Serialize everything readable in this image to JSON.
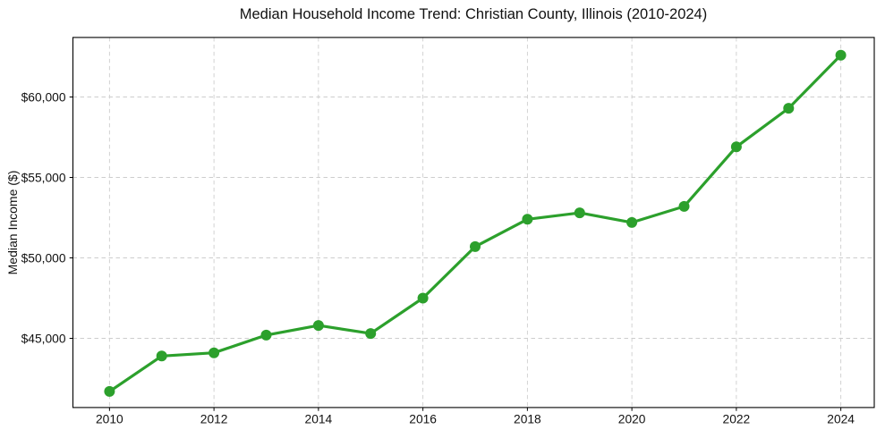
{
  "figure": {
    "title": "Median Household Income Trend: Christian County, Illinois (2010-2024)"
  },
  "chart_data": {
    "type": "line",
    "title": "Median Household Income Trend: Christian County, Illinois (2010-2024)",
    "xlabel": "",
    "ylabel": "Median Income ($)",
    "x": [
      2010,
      2011,
      2012,
      2013,
      2014,
      2015,
      2016,
      2017,
      2018,
      2019,
      2020,
      2021,
      2022,
      2023,
      2024
    ],
    "series": [
      {
        "name": "Median Household Income",
        "values": [
          41700,
          43900,
          44100,
          45200,
          45800,
          45300,
          47500,
          50700,
          52400,
          52800,
          52200,
          53200,
          56900,
          59300,
          62600
        ],
        "color": "#2ca02c",
        "marker": "circle",
        "line_width": 3.2,
        "marker_radius": 6
      }
    ],
    "x_ticks": {
      "values": [
        2010,
        2012,
        2014,
        2016,
        2018,
        2020,
        2022,
        2024
      ],
      "labels": [
        "2010",
        "2012",
        "2014",
        "2016",
        "2018",
        "2020",
        "2022",
        "2024"
      ]
    },
    "y_ticks": {
      "values": [
        45000,
        50000,
        55000,
        60000
      ],
      "labels": [
        "$45,000",
        "$50,000",
        "$55,000",
        "$60,000"
      ]
    },
    "xlim": [
      2009.3,
      2024.64
    ],
    "ylim": [
      40700,
      63700
    ],
    "grid": true,
    "grid_style": "dashed",
    "grid_color": "#cdcdcd",
    "axis_color": "#000000",
    "text_color": "#111111",
    "background_color": "#ffffff",
    "legend": "none"
  }
}
